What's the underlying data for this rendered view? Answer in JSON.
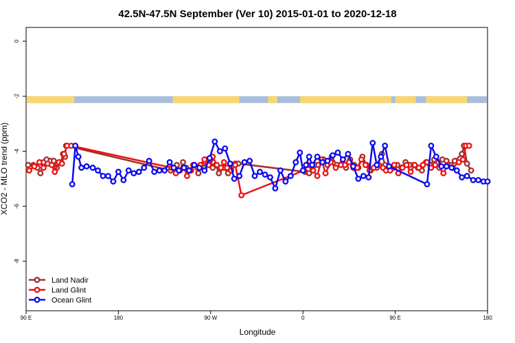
{
  "chart_data": {
    "type": "line",
    "title": "42.5N-47.5N September (Ver 10)   2015-01-01 to 2020-12-18",
    "xlabel": "Longitude",
    "ylabel": "XCO2 - MLO trend (ppm)",
    "x_ticks": [
      {
        "value": 90,
        "label": "90 E"
      },
      {
        "value": 180,
        "label": "180"
      },
      {
        "value": 270,
        "label": "90 W"
      },
      {
        "value": 360,
        "label": "0"
      },
      {
        "value": 450,
        "label": "90 E"
      },
      {
        "value": 540,
        "label": "180"
      }
    ],
    "y_ticks": [
      {
        "value": 0,
        "label": "0"
      },
      {
        "value": -2,
        "label": "-2"
      },
      {
        "value": -4,
        "label": "-4"
      },
      {
        "value": -6,
        "label": "-6"
      },
      {
        "value": -8,
        "label": "-8"
      }
    ],
    "xlim": [
      90,
      540
    ],
    "ylim": [
      -9.8,
      0.5
    ],
    "land_band": {
      "y_range": [
        -2.0,
        -2.25
      ],
      "land_color": "#f7d774",
      "ocean_color": "#a9bedd",
      "land_segments": [
        [
          90,
          137
        ],
        [
          233,
          298
        ],
        [
          326,
          335
        ],
        [
          357,
          446
        ],
        [
          450,
          470
        ],
        [
          480,
          520
        ]
      ]
    },
    "legend_position": "bottom-left",
    "series": [
      {
        "name": "Land Nadir",
        "color": "#a0302e",
        "x": [
          92,
          97,
          101,
          104,
          107,
          110,
          114,
          117,
          120,
          124,
          126,
          128,
          129,
          231,
          234,
          237,
          240,
          243,
          246,
          251,
          254,
          258,
          262,
          264,
          267,
          270,
          272,
          275,
          278,
          283,
          287,
          290,
          294,
          297,
          362,
          366,
          369,
          372,
          375,
          380,
          384,
          388,
          393,
          398,
          402,
          406,
          410,
          414,
          418,
          422,
          426,
          432,
          437,
          440,
          444,
          448,
          452,
          456,
          460,
          464,
          468,
          472,
          476,
          480,
          484,
          488,
          492,
          496,
          500,
          504,
          508,
          515,
          517,
          520,
          524
        ],
        "y": [
          -4.5,
          -4.5,
          -4.6,
          -4.8,
          -4.4,
          -4.3,
          -4.35,
          -4.35,
          -4.6,
          -4.4,
          -4.1,
          -4.2,
          -3.8,
          -4.7,
          -4.6,
          -4.5,
          -4.7,
          -4.4,
          -4.6,
          -4.7,
          -4.5,
          -4.8,
          -4.5,
          -4.6,
          -4.3,
          -4.3,
          -4.6,
          -4.5,
          -4.8,
          -4.6,
          -4.8,
          -4.6,
          -4.45,
          -4.45,
          -4.75,
          -4.8,
          -4.6,
          -4.5,
          -4.5,
          -4.3,
          -4.5,
          -4.2,
          -4.5,
          -4.45,
          -4.6,
          -4.3,
          -4.5,
          -4.6,
          -4.2,
          -4.5,
          -4.7,
          -4.6,
          -4.1,
          -4.5,
          -4.6,
          -4.6,
          -4.5,
          -4.6,
          -4.4,
          -4.5,
          -4.5,
          -4.6,
          -4.7,
          -4.4,
          -4.5,
          -4.3,
          -4.4,
          -4.3,
          -4.35,
          -4.5,
          -4.35,
          -4.1,
          -3.8,
          -4.45,
          -4.7
        ]
      },
      {
        "name": "Land Glint",
        "color": "#ee1010",
        "x": [
          93,
          98,
          103,
          107,
          111,
          115,
          118,
          122,
          125,
          127,
          130,
          134,
          232,
          236,
          240,
          244,
          247,
          250,
          253,
          257,
          260,
          264,
          268,
          272,
          276,
          280,
          283,
          286,
          290,
          294,
          300,
          361,
          365,
          370,
          374,
          378,
          382,
          387,
          392,
          397,
          401,
          405,
          409,
          413,
          417,
          421,
          425,
          429,
          434,
          438,
          441,
          445,
          449,
          453,
          457,
          461,
          465,
          469,
          473,
          477,
          481,
          485,
          489,
          493,
          497,
          501,
          506,
          512,
          516,
          519,
          522
        ],
        "y": [
          -4.7,
          -4.55,
          -4.4,
          -4.6,
          -4.45,
          -4.5,
          -4.75,
          -4.4,
          -4.45,
          -4.1,
          -3.8,
          -3.8,
          -4.6,
          -4.8,
          -4.7,
          -4.6,
          -4.9,
          -4.7,
          -4.5,
          -4.6,
          -4.5,
          -4.3,
          -4.5,
          -4.2,
          -4.5,
          -4.6,
          -4.4,
          -4.6,
          -4.7,
          -4.5,
          -5.6,
          -4.7,
          -4.5,
          -4.7,
          -4.9,
          -4.3,
          -4.8,
          -4.4,
          -4.6,
          -4.5,
          -4.5,
          -4.4,
          -4.6,
          -4.6,
          -4.3,
          -4.5,
          -4.7,
          -4.6,
          -4.5,
          -4.6,
          -4.7,
          -4.7,
          -4.5,
          -4.8,
          -4.6,
          -4.5,
          -4.75,
          -4.5,
          -4.6,
          -4.5,
          -4.4,
          -4.6,
          -4.5,
          -4.6,
          -4.8,
          -4.5,
          -4.6,
          -4.4,
          -4.3,
          -3.8,
          -3.8
        ]
      },
      {
        "name": "Ocean Glint",
        "color": "#0a0aee",
        "x": [
          135,
          138,
          141,
          144,
          149,
          155,
          160,
          165,
          170,
          175,
          180,
          185,
          190,
          195,
          200,
          205,
          210,
          215,
          220,
          225,
          230,
          234,
          239,
          244,
          249,
          254,
          259,
          264,
          269,
          274,
          279,
          284,
          289,
          293,
          298,
          303,
          308,
          313,
          318,
          323,
          328,
          333,
          338,
          343,
          348,
          353,
          357,
          360,
          363,
          366,
          369,
          374,
          379,
          384,
          389,
          394,
          399,
          404,
          409,
          414,
          419,
          424,
          428,
          432,
          436,
          440,
          444,
          481,
          485,
          490,
          495,
          500,
          505,
          510,
          515,
          520,
          526,
          531,
          536,
          540
        ],
        "y": [
          -5.2,
          -3.8,
          -4.2,
          -4.6,
          -4.55,
          -4.6,
          -4.7,
          -4.9,
          -4.9,
          -5.1,
          -4.75,
          -5.05,
          -4.7,
          -4.8,
          -4.75,
          -4.6,
          -4.35,
          -4.75,
          -4.7,
          -4.7,
          -4.4,
          -4.6,
          -4.7,
          -4.6,
          -4.7,
          -4.5,
          -4.6,
          -4.7,
          -4.25,
          -3.65,
          -4.0,
          -3.9,
          -4.45,
          -5.0,
          -4.9,
          -4.4,
          -4.35,
          -4.9,
          -4.75,
          -4.85,
          -4.95,
          -5.35,
          -4.7,
          -5.1,
          -4.9,
          -4.4,
          -4.05,
          -4.7,
          -4.5,
          -4.2,
          -4.5,
          -4.2,
          -4.4,
          -4.35,
          -4.15,
          -4.05,
          -4.3,
          -4.1,
          -4.55,
          -5.0,
          -4.9,
          -4.95,
          -3.7,
          -4.5,
          -4.2,
          -3.8,
          -4.55,
          -5.2,
          -3.8,
          -4.2,
          -4.55,
          -4.55,
          -4.6,
          -4.7,
          -4.95,
          -4.9,
          -5.05,
          -5.05,
          -5.1,
          -5.1
        ]
      }
    ]
  }
}
